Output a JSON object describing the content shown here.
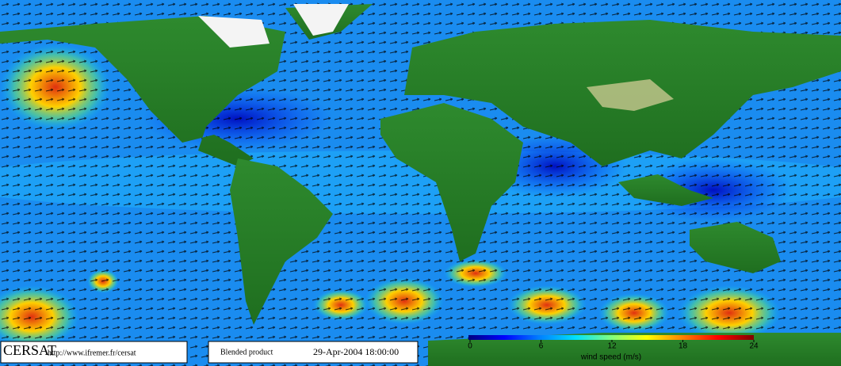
{
  "footer": {
    "logo": "CERSAT",
    "url": "http://www.ifremer.fr/cersat",
    "product": "Blended product",
    "timestamp": "29-Apr-2004 18:00:00"
  },
  "colorbar": {
    "label": "wind speed (m/s)",
    "lim": [
      0,
      24
    ],
    "ticks": [
      0,
      6,
      12,
      18,
      24
    ],
    "colors": [
      "#000080",
      "#0000ff",
      "#0080ff",
      "#00e0ff",
      "#80ff80",
      "#ffff00",
      "#ff8000",
      "#ff0000",
      "#800000"
    ]
  }
}
